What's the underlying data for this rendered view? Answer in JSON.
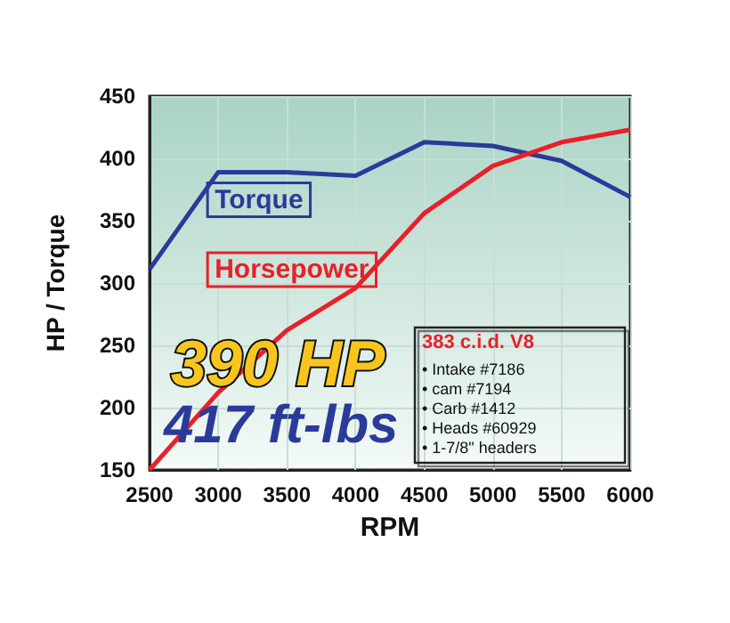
{
  "chart_data": {
    "type": "line",
    "xlabel": "RPM",
    "ylabel": "HP / Torque",
    "x": [
      2500,
      3000,
      3500,
      4000,
      4500,
      5000,
      5500,
      6000
    ],
    "series": [
      {
        "name": "Torque",
        "color": "#2b3a9a",
        "values": [
          311,
          389,
          389,
          386,
          413,
          410,
          398,
          369
        ]
      },
      {
        "name": "Horsepower",
        "color": "#e8202a",
        "values": [
          150,
          212,
          262,
          296,
          356,
          394,
          413,
          423
        ]
      }
    ],
    "xlim": [
      2500,
      6000
    ],
    "xticks": [
      2500,
      3000,
      3500,
      4000,
      4500,
      5000,
      5500,
      6000
    ],
    "ylim": [
      150,
      450
    ],
    "yticks": [
      150,
      200,
      250,
      300,
      350,
      400,
      450
    ],
    "grid": true,
    "marker": "none",
    "line_style": "solid",
    "annotations": [
      "390 HP",
      "417 ft-lbs",
      "383 c.i.d. V8",
      "• Intake #7186",
      "• cam #7194",
      "• Carb #1412",
      "• Heads #60929",
      "• 1-7/8\" headers"
    ]
  }
}
